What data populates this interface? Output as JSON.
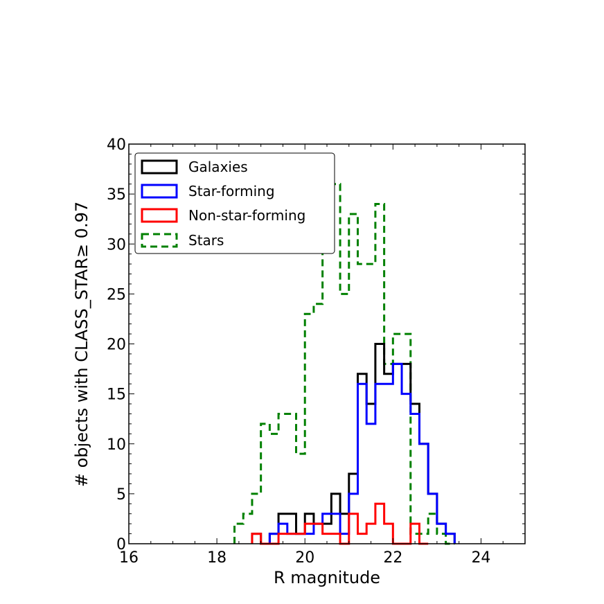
{
  "chart_data": {
    "type": "histogram",
    "xlabel": "R magnitude",
    "ylabel": "# objects with CLASS_STAR≥ 0.97",
    "xlim": [
      16,
      25
    ],
    "ylim": [
      0,
      40
    ],
    "xticks": [
      16,
      18,
      20,
      22,
      24
    ],
    "yticks": [
      0,
      5,
      10,
      15,
      20,
      25,
      30,
      35,
      40
    ],
    "bin_width": 0.2,
    "legend_position": "upper-left",
    "series": [
      {
        "name": "Galaxies",
        "color": "#000000",
        "style": "solid",
        "bins_start": [
          18.8,
          19.0,
          19.2,
          19.4,
          19.6,
          19.8,
          20.0,
          20.2,
          20.4,
          20.6,
          20.8,
          21.0,
          21.2,
          21.4,
          21.6,
          21.8,
          22.0,
          22.2,
          22.4,
          22.6,
          22.8,
          23.0,
          23.2
        ],
        "counts": [
          1,
          0,
          1,
          3,
          3,
          1,
          3,
          2,
          2,
          5,
          3,
          7,
          17,
          14,
          20,
          17,
          18,
          18,
          14,
          10,
          5,
          2,
          1
        ]
      },
      {
        "name": "Star-forming",
        "color": "#0000ff",
        "style": "solid",
        "bins_start": [
          19.2,
          19.4,
          19.6,
          19.8,
          20.0,
          20.2,
          20.4,
          20.6,
          20.8,
          21.0,
          21.2,
          21.4,
          21.6,
          21.8,
          22.0,
          22.2,
          22.4,
          22.6,
          22.8,
          23.0,
          23.2
        ],
        "counts": [
          1,
          2,
          1,
          1,
          1,
          2,
          3,
          3,
          1,
          5,
          16,
          12,
          16,
          16,
          18,
          15,
          13,
          10,
          5,
          2,
          1
        ]
      },
      {
        "name": "Non-star-forming",
        "color": "#ff0000",
        "style": "solid",
        "bins_start": [
          18.8,
          19.0,
          19.2,
          19.4,
          19.6,
          19.8,
          20.0,
          20.2,
          20.4,
          20.6,
          20.8,
          21.0,
          21.2,
          21.4,
          21.6,
          21.8,
          22.0,
          22.2,
          22.4,
          22.6
        ],
        "counts": [
          1,
          0,
          0,
          1,
          1,
          1,
          2,
          2,
          1,
          1,
          0,
          3,
          1,
          2,
          4,
          2,
          0,
          0,
          2,
          0
        ]
      },
      {
        "name": "Stars",
        "color": "#008000",
        "style": "dashed",
        "bins_start": [
          18.4,
          18.6,
          18.8,
          19.0,
          19.2,
          19.4,
          19.6,
          19.8,
          20.0,
          20.2,
          20.4,
          20.6,
          20.8,
          21.0,
          21.2,
          21.4,
          21.6,
          21.8,
          22.0,
          22.2,
          22.4,
          22.6,
          22.8,
          23.0,
          23.2
        ],
        "counts": [
          2,
          3,
          5,
          12,
          11,
          13,
          13,
          9,
          23,
          24,
          30,
          36,
          25,
          33,
          28,
          28,
          34,
          18,
          21,
          21,
          1,
          1,
          3,
          1,
          0
        ]
      }
    ]
  }
}
